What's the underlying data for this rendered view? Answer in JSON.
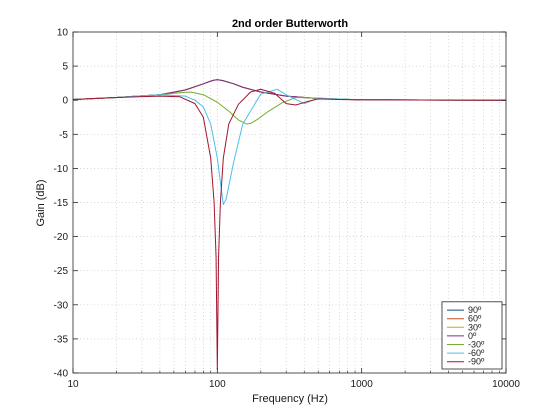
{
  "chart_data": {
    "type": "line",
    "title": "2nd order Butterworth",
    "xlabel": "Frequency (Hz)",
    "ylabel": "Gain (dB)",
    "xscale": "log",
    "xlim": [
      10,
      10000
    ],
    "ylim": [
      -40,
      10
    ],
    "xticks": [
      10,
      100,
      1000,
      10000
    ],
    "xtick_labels": [
      "10",
      "100",
      "1000",
      "10000"
    ],
    "yticks": [
      10,
      5,
      0,
      -5,
      -10,
      -15,
      -20,
      -25,
      -30,
      -35,
      -40
    ],
    "ytick_labels": [
      "10",
      "5",
      "0",
      "-5",
      "-10",
      "-15",
      "-20",
      "-25",
      "-30",
      "-35",
      "-40"
    ],
    "grid": "dotted-log",
    "legend_position": "bottom-right",
    "series": [
      {
        "name": "90º",
        "color": "#0a4f7a",
        "x": [
          10,
          20,
          40,
          60,
          80,
          90,
          95,
          100,
          105,
          110,
          130,
          150,
          200,
          300,
          500,
          1000,
          10000
        ],
        "y": [
          0.1,
          0.4,
          0.8,
          1.5,
          2.4,
          2.8,
          2.95,
          3.0,
          2.95,
          2.85,
          2.4,
          1.9,
          1.2,
          0.6,
          0.25,
          0.05,
          0
        ]
      },
      {
        "name": "60º",
        "color": "#c8501e",
        "x": [
          10,
          20,
          40,
          60,
          80,
          90,
          95,
          100,
          105,
          110,
          130,
          150,
          200,
          300,
          500,
          1000,
          10000
        ],
        "y": [
          0.1,
          0.4,
          0.8,
          1.5,
          2.4,
          2.8,
          2.95,
          3.0,
          2.95,
          2.85,
          2.4,
          1.9,
          1.2,
          0.6,
          0.25,
          0.05,
          0
        ]
      },
      {
        "name": "30º",
        "color": "#d9a11f",
        "x": [
          10,
          20,
          40,
          60,
          80,
          90,
          95,
          100,
          105,
          110,
          130,
          150,
          200,
          300,
          500,
          1000,
          10000
        ],
        "y": [
          0.1,
          0.4,
          0.8,
          1.5,
          2.4,
          2.8,
          2.95,
          3.0,
          2.95,
          2.85,
          2.4,
          1.9,
          1.2,
          0.6,
          0.25,
          0.05,
          0
        ]
      },
      {
        "name": "0º",
        "color": "#7b2d8e",
        "x": [
          10,
          20,
          40,
          60,
          80,
          90,
          95,
          100,
          105,
          110,
          130,
          150,
          200,
          300,
          500,
          1000,
          10000
        ],
        "y": [
          0.1,
          0.4,
          0.8,
          1.5,
          2.4,
          2.8,
          2.95,
          3.0,
          2.95,
          2.85,
          2.4,
          1.9,
          1.2,
          0.6,
          0.25,
          0.05,
          0
        ]
      },
      {
        "name": "-30º",
        "color": "#77ac30",
        "x": [
          10,
          20,
          40,
          55,
          65,
          80,
          100,
          120,
          140,
          160,
          170,
          190,
          220,
          280,
          350,
          500,
          1000,
          10000
        ],
        "y": [
          0.1,
          0.4,
          0.8,
          1.1,
          1.2,
          0.8,
          -0.3,
          -1.6,
          -2.9,
          -3.5,
          -3.4,
          -2.8,
          -1.8,
          -0.4,
          0.4,
          0.3,
          0.05,
          0
        ]
      },
      {
        "name": "-60º",
        "color": "#4dbeee",
        "x": [
          10,
          20,
          40,
          60,
          70,
          80,
          90,
          100,
          105,
          110,
          115,
          130,
          150,
          200,
          260,
          300,
          400,
          500,
          1000,
          10000
        ],
        "y": [
          0.1,
          0.4,
          0.8,
          0.6,
          0,
          -1.0,
          -3.5,
          -8.5,
          -12,
          -15.3,
          -14.5,
          -9,
          -3.5,
          0.9,
          1.6,
          0.8,
          -0.5,
          0.3,
          0.05,
          0
        ]
      },
      {
        "name": "-90º",
        "color": "#a2142f",
        "x": [
          10,
          20,
          40,
          55,
          70,
          80,
          90,
          95,
          98,
          100,
          102,
          105,
          110,
          120,
          140,
          170,
          200,
          250,
          300,
          350,
          420,
          500,
          700,
          1000,
          10000
        ],
        "y": [
          0.1,
          0.4,
          0.6,
          0.5,
          -0.5,
          -2.5,
          -8.5,
          -15,
          -23,
          -39.5,
          -23,
          -15,
          -8.5,
          -3.5,
          -0.6,
          1.2,
          1.6,
          1.0,
          -0.5,
          -0.7,
          -0.2,
          0.2,
          0.1,
          0.05,
          0
        ]
      }
    ]
  }
}
